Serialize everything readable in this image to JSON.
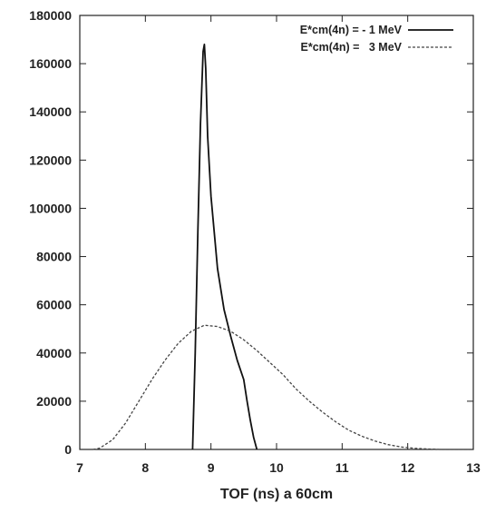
{
  "chart_data": {
    "type": "line",
    "title": "",
    "xlabel": "TOF (ns) a 60cm",
    "ylabel": "",
    "xlim": [
      7,
      13
    ],
    "ylim": [
      0,
      180000
    ],
    "xticks": [
      "7",
      "8",
      "9",
      "10",
      "11",
      "12",
      "13"
    ],
    "yticks": [
      "0",
      "20000",
      "40000",
      "60000",
      "80000",
      "100000",
      "120000",
      "140000",
      "160000",
      "180000"
    ],
    "grid": false,
    "legend_position": "top-right",
    "series": [
      {
        "name": "E*cm(4n) = - 1 MeV",
        "style": "solid",
        "color": "#111111",
        "x": [
          8.72,
          8.76,
          8.8,
          8.84,
          8.88,
          8.9,
          8.92,
          8.95,
          9.0,
          9.05,
          9.1,
          9.2,
          9.3,
          9.4,
          9.5,
          9.55,
          9.6,
          9.65,
          9.7
        ],
        "y": [
          0,
          40000,
          90000,
          135000,
          165000,
          168000,
          158000,
          130000,
          105000,
          90000,
          75000,
          58000,
          47000,
          37000,
          29000,
          20000,
          12000,
          5000,
          0
        ]
      },
      {
        "name": "E*cm(4n) =   3 MeV",
        "style": "dashed",
        "color": "#444444",
        "x": [
          7.2,
          7.3,
          7.5,
          7.7,
          7.9,
          8.1,
          8.3,
          8.5,
          8.7,
          8.9,
          9.1,
          9.3,
          9.5,
          9.7,
          9.9,
          10.1,
          10.3,
          10.5,
          10.7,
          10.9,
          11.1,
          11.3,
          11.5,
          11.7,
          11.9,
          12.1,
          12.3,
          12.5,
          12.7,
          13.0
        ],
        "y": [
          0,
          500,
          4000,
          11000,
          20000,
          29000,
          37000,
          44000,
          49000,
          51500,
          51000,
          49000,
          45500,
          41000,
          36000,
          31000,
          25000,
          20000,
          15500,
          11500,
          8000,
          5500,
          3500,
          2000,
          1000,
          500,
          200,
          0,
          0,
          0
        ]
      }
    ]
  }
}
